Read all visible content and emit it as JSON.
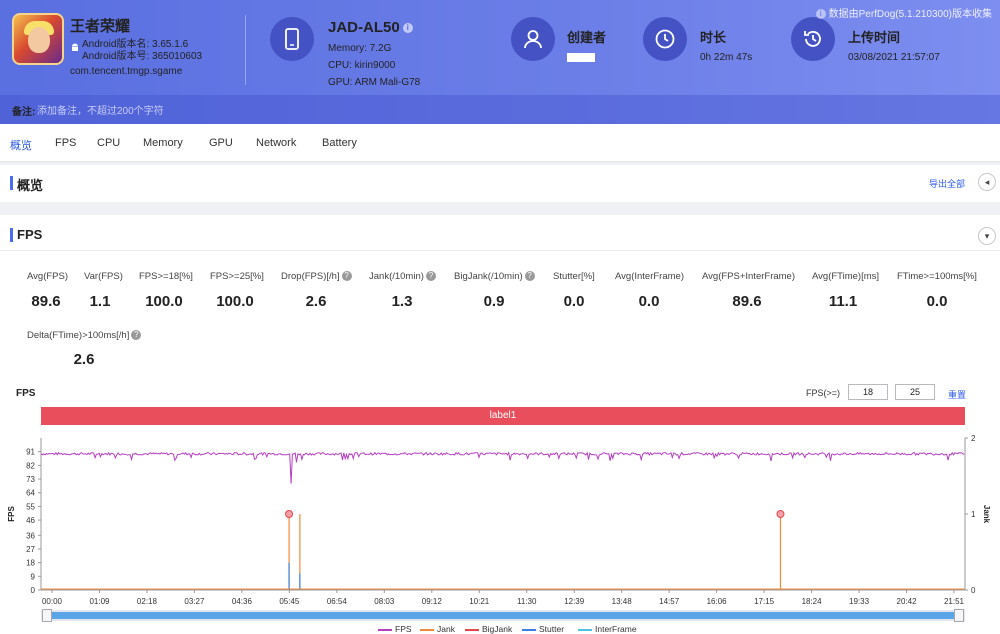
{
  "header": {
    "app": {
      "name": "王者荣耀",
      "android_version_name": "Android版本名: 3.65.1.6",
      "android_version_code": "Android版本号: 365010603",
      "package": "com.tencent.tmgp.sgame"
    },
    "device": {
      "model": "JAD-AL50",
      "memory": "Memory: 7.2G",
      "cpu": "CPU: kirin9000",
      "gpu": "GPU: ARM Mali-G78"
    },
    "creator": {
      "label": "创建者"
    },
    "duration": {
      "label": "时长",
      "value": "0h 22m 47s"
    },
    "upload": {
      "label": "上传时间",
      "value": "03/08/2021 21:57:07"
    },
    "source_note": "数据由PerfDog(5.1.210300)版本收集",
    "note": {
      "label": "备注:",
      "placeholder": "添加备注，不超过200个字符"
    }
  },
  "tabs": [
    "概览",
    "FPS",
    "CPU",
    "Memory",
    "GPU",
    "Network",
    "Battery"
  ],
  "overview": {
    "title": "概览",
    "export": "导出全部"
  },
  "fps_section": {
    "title": "FPS",
    "metrics": [
      {
        "label": "Avg(FPS)",
        "value": "89.6"
      },
      {
        "label": "Var(FPS)",
        "value": "1.1"
      },
      {
        "label": "FPS>=18[%]",
        "value": "100.0"
      },
      {
        "label": "FPS>=25[%]",
        "value": "100.0"
      },
      {
        "label": "Drop(FPS)[/h]",
        "value": "2.6"
      },
      {
        "label": "Jank(/10min)",
        "value": "1.3"
      },
      {
        "label": "BigJank(/10min)",
        "value": "0.9"
      },
      {
        "label": "Stutter[%]",
        "value": "0.0"
      },
      {
        "label": "Avg(InterFrame)",
        "value": "0.0"
      },
      {
        "label": "Avg(FPS+InterFrame)",
        "value": "89.6"
      },
      {
        "label": "Avg(FTime)[ms]",
        "value": "11.1"
      },
      {
        "label": "FTime>=100ms[%]",
        "value": "0.0"
      },
      {
        "label": "Delta(FTime)>100ms[/h]",
        "value": "2.6"
      }
    ]
  },
  "chart_controls": {
    "title": "FPS",
    "threshold_label": "FPS(>=)",
    "threshold_1": "18",
    "threshold_2": "25",
    "reset": "重置",
    "label_band": "label1"
  },
  "chart_data": {
    "type": "line",
    "x_ticks": [
      "00:00",
      "01:09",
      "02:18",
      "03:27",
      "04:36",
      "05:45",
      "06:54",
      "08:03",
      "09:12",
      "10:21",
      "11:30",
      "12:39",
      "13:48",
      "14:57",
      "16:06",
      "17:15",
      "18:24",
      "19:33",
      "20:42",
      "21:51"
    ],
    "y_ticks": [
      0,
      9,
      18,
      27,
      36,
      46,
      55,
      64,
      73,
      82,
      91
    ],
    "y_label": "FPS",
    "ylim": [
      0,
      100
    ],
    "y2_ticks": [
      0,
      1,
      2
    ],
    "y2_label": "Jank",
    "y2lim": [
      0,
      2
    ],
    "x_range_sec": [
      0,
      1367
    ],
    "series": [
      {
        "name": "FPS",
        "color": "#b43fc0",
        "baseline": 89.6,
        "dips": [
          [
            370,
            70
          ],
          [
            378,
            84
          ],
          [
            386,
            86
          ],
          [
            1000,
            88
          ]
        ]
      },
      {
        "name": "Jank",
        "color": "#f08b3c",
        "events_sec": [
          [
            367,
            1
          ],
          [
            383,
            1
          ],
          [
            1094,
            1
          ]
        ]
      },
      {
        "name": "BigJank",
        "color": "#e0474c",
        "events_sec": [
          [
            367,
            1
          ],
          [
            1094,
            1
          ]
        ]
      },
      {
        "name": "Stutter",
        "color": "#3d7fe0",
        "events_sec": [
          [
            367,
            0.36
          ],
          [
            383,
            0.22
          ]
        ]
      },
      {
        "name": "InterFrame",
        "color": "#4fc4dc",
        "events_sec": []
      }
    ]
  }
}
